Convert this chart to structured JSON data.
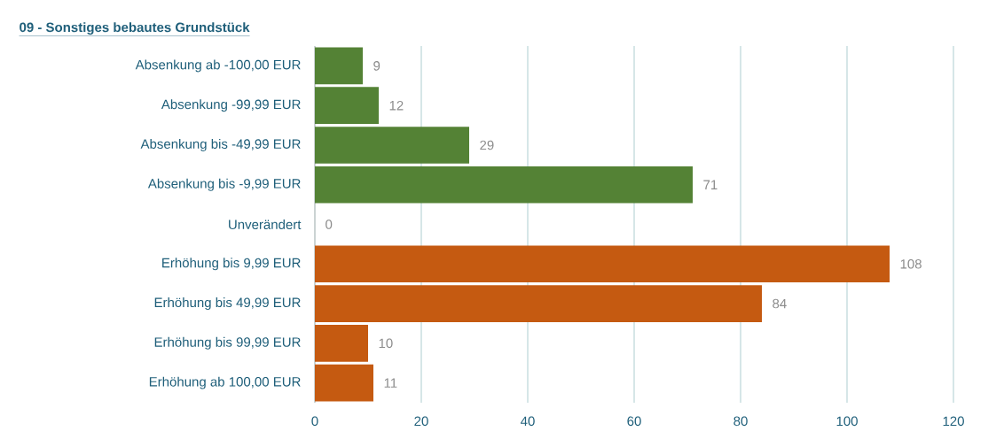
{
  "chart_data": {
    "type": "bar",
    "orientation": "horizontal",
    "title": "09 - Sonstiges bebautes Grundstück",
    "categories": [
      "Absenkung ab -100,00 EUR",
      "Absenkung -99,99 EUR",
      "Absenkung bis -49,99 EUR",
      "Absenkung bis -9,99 EUR",
      "Unverändert",
      "Erhöhung bis 9,99 EUR",
      "Erhöhung bis 49,99 EUR",
      "Erhöhung bis 99,99 EUR",
      "Erhöhung ab 100,00 EUR"
    ],
    "values": [
      9,
      12,
      29,
      71,
      0,
      108,
      84,
      10,
      11
    ],
    "colors": [
      "#548235",
      "#548235",
      "#548235",
      "#548235",
      "#548235",
      "#c55a11",
      "#c55a11",
      "#c55a11",
      "#c55a11"
    ],
    "data_labels": true,
    "grid": "x",
    "xlim": [
      0,
      120
    ],
    "xticks": [
      0,
      20,
      40,
      60,
      80,
      100,
      120
    ]
  }
}
